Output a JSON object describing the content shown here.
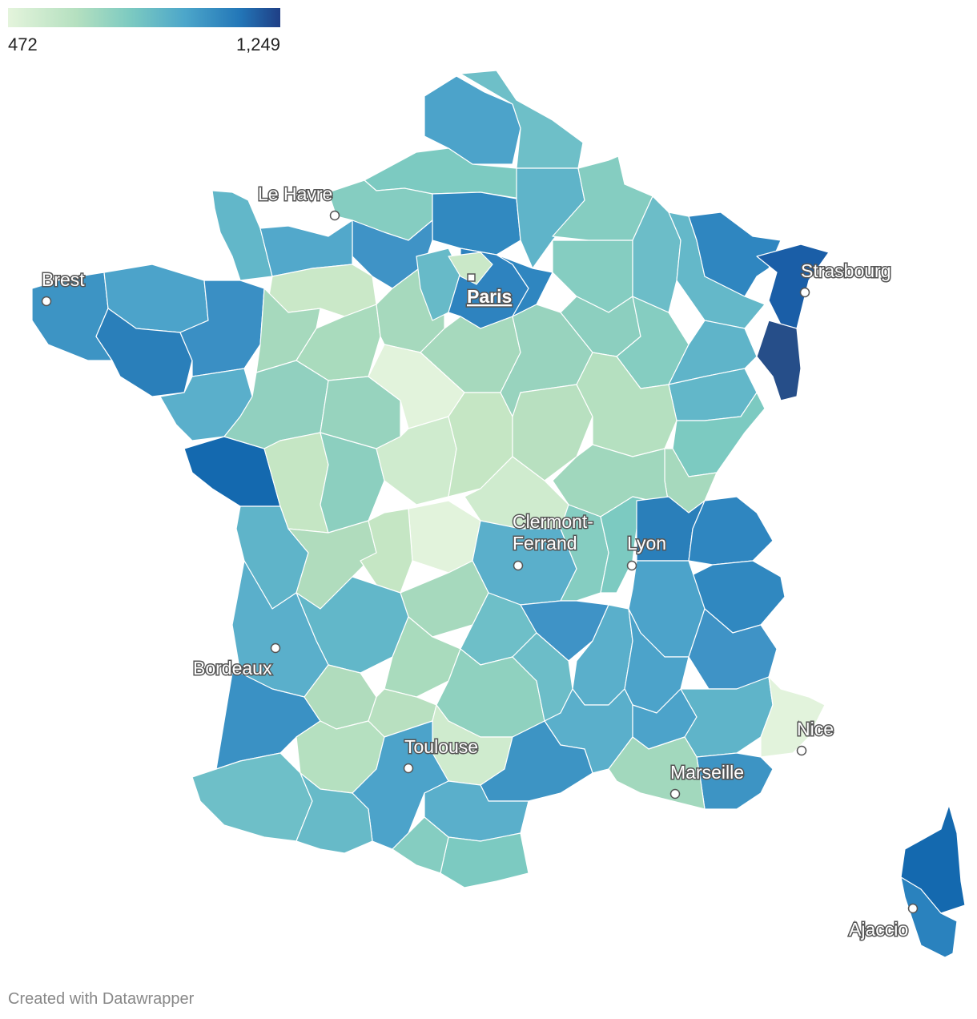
{
  "legend": {
    "min_label": "472",
    "max_label": "1,249",
    "gradient_colors": [
      "#e4f4dc",
      "#b5e0c0",
      "#7ccac1",
      "#4ca6ca",
      "#2377b8",
      "#1f3f86"
    ]
  },
  "cities": [
    {
      "name": "Le Havre",
      "marker": "circle"
    },
    {
      "name": "Brest",
      "marker": "circle"
    },
    {
      "name": "Paris",
      "marker": "square",
      "capital": true
    },
    {
      "name": "Strasbourg",
      "marker": "circle"
    },
    {
      "name": "Clermont-Ferrand",
      "label_lines": [
        "Clermont-",
        "Ferrand"
      ],
      "marker": "circle"
    },
    {
      "name": "Lyon",
      "marker": "circle"
    },
    {
      "name": "Bordeaux",
      "marker": "circle"
    },
    {
      "name": "Toulouse",
      "marker": "circle"
    },
    {
      "name": "Nice",
      "marker": "circle"
    },
    {
      "name": "Marseille",
      "marker": "circle"
    },
    {
      "name": "Ajaccio",
      "marker": "circle"
    }
  ],
  "footer": {
    "credit": "Created with Datawrapper"
  }
}
